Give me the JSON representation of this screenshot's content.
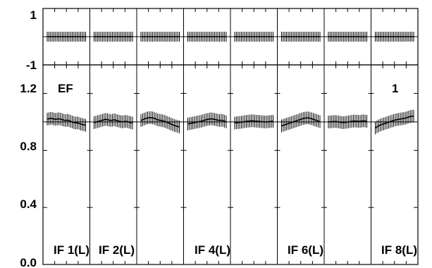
{
  "chart_data": [
    {
      "type": "line",
      "panel": "phase",
      "title": "",
      "xlabel": "",
      "ylabel": "",
      "ylim": [
        -1,
        1
      ],
      "ytick_labels": [
        "1",
        "-1"
      ],
      "grid": false,
      "segments": [
        {
          "values": [
            0,
            0,
            0,
            0,
            0,
            0,
            0,
            0,
            0,
            0,
            0,
            0,
            0,
            0,
            0,
            0,
            0,
            0,
            0,
            0,
            0,
            0,
            0,
            0
          ]
        },
        {
          "values": [
            0,
            0,
            0,
            0,
            0,
            0,
            0,
            0,
            0,
            0,
            0,
            0,
            0,
            0,
            0,
            0,
            0,
            0,
            0,
            0,
            0,
            0,
            0,
            0
          ]
        },
        {
          "values": [
            0,
            0,
            0,
            0,
            0,
            0,
            0,
            0,
            0,
            0,
            0,
            0,
            0,
            0,
            0,
            0,
            0,
            0,
            0,
            0,
            0,
            0,
            0,
            0
          ]
        },
        {
          "values": [
            0,
            0,
            0,
            0,
            0,
            0,
            0,
            0,
            0,
            0,
            0,
            0,
            0,
            0,
            0,
            0,
            0,
            0,
            0,
            0,
            0,
            0,
            0,
            0
          ]
        },
        {
          "values": [
            0,
            0,
            0,
            0,
            0,
            0,
            0,
            0,
            0,
            0,
            0,
            0,
            0,
            0,
            0,
            0,
            0,
            0,
            0,
            0,
            0,
            0,
            0,
            0
          ]
        },
        {
          "values": [
            0,
            0,
            0,
            0,
            0,
            0,
            0,
            0,
            0,
            0,
            0,
            0,
            0,
            0,
            0,
            0,
            0,
            0,
            0,
            0,
            0,
            0,
            0,
            0
          ]
        },
        {
          "values": [
            0,
            0,
            0,
            0,
            0,
            0,
            0,
            0,
            0,
            0,
            0,
            0,
            0,
            0,
            0,
            0,
            0,
            0,
            0,
            0,
            0,
            0,
            0,
            0
          ]
        },
        {
          "values": [
            0,
            0,
            0,
            0,
            0,
            0,
            0,
            0,
            0,
            0,
            0,
            0,
            0,
            0,
            0,
            0,
            0,
            0,
            0,
            0,
            0,
            0,
            0,
            0
          ]
        }
      ]
    },
    {
      "type": "line",
      "panel": "amplitude",
      "title": "",
      "xlabel": "",
      "ylabel": "",
      "ylim": [
        0.0,
        1.4
      ],
      "ytick_labels": [
        "1.2",
        "0.8",
        "0.4",
        "0.0"
      ],
      "grid": false,
      "annotations": [
        "EF",
        "1"
      ],
      "if_labels": [
        "IF 1(L)",
        "IF 2(L)",
        "IF 4(L)",
        "IF 6(L)",
        "IF 8(L)"
      ],
      "segments": [
        {
          "values": [
            1.02,
            1.022,
            1.025,
            1.024,
            1.02,
            1.018,
            1.02,
            1.022,
            1.02,
            1.016,
            1.012,
            1.01,
            1.012,
            1.01,
            1.004,
            1.0,
            0.995,
            0.992,
            0.994,
            0.99,
            0.985,
            0.982,
            0.98,
            0.976
          ]
        },
        {
          "values": [
            0.995,
            0.998,
            1.002,
            1.005,
            1.008,
            1.012,
            1.015,
            1.018,
            1.016,
            1.012,
            1.01,
            1.012,
            1.015,
            1.012,
            1.008,
            1.005,
            1.002,
            1.0,
            1.002,
            1.004,
            1.002,
            0.998,
            0.995,
            0.992
          ]
        },
        {
          "values": [
            1.01,
            1.015,
            1.02,
            1.025,
            1.028,
            1.03,
            1.03,
            1.028,
            1.025,
            1.02,
            1.015,
            1.012,
            1.01,
            1.008,
            1.005,
            1.0,
            0.995,
            0.99,
            0.985,
            0.98,
            0.975,
            0.972,
            0.968,
            0.965
          ]
        },
        {
          "values": [
            0.985,
            0.988,
            0.99,
            0.992,
            0.995,
            0.998,
            1.0,
            1.002,
            1.005,
            1.008,
            1.012,
            1.015,
            1.018,
            1.02,
            1.022,
            1.02,
            1.018,
            1.015,
            1.012,
            1.01,
            1.012,
            1.01,
            1.005,
            1.0
          ]
        },
        {
          "values": [
            0.992,
            0.994,
            0.995,
            0.996,
            0.998,
            1.0,
            1.002,
            1.004,
            1.005,
            1.006,
            1.008,
            1.008,
            1.006,
            1.005,
            1.004,
            1.003,
            1.002,
            1.001,
            1.0,
            1.0,
            1.001,
            1.002,
            1.004,
            1.005
          ]
        },
        {
          "values": [
            0.972,
            0.976,
            0.98,
            0.984,
            0.988,
            0.992,
            0.996,
            1.0,
            1.004,
            1.008,
            1.012,
            1.016,
            1.02,
            1.024,
            1.026,
            1.028,
            1.028,
            1.026,
            1.022,
            1.018,
            1.014,
            1.01,
            1.006,
            1.002
          ]
        },
        {
          "values": [
            1.0,
            1.0,
            1.002,
            1.002,
            1.003,
            1.002,
            1.0,
            0.998,
            0.996,
            0.995,
            0.996,
            0.998,
            1.0,
            1.002,
            1.004,
            1.006,
            1.006,
            1.005,
            1.004,
            1.004,
            1.006,
            1.008,
            1.006,
            1.004
          ]
        },
        {
          "values": [
            0.958,
            0.965,
            0.972,
            0.978,
            0.982,
            0.986,
            0.99,
            0.994,
            0.998,
            1.002,
            1.006,
            1.01,
            1.014,
            1.016,
            1.018,
            1.02,
            1.022,
            1.024,
            1.026,
            1.03,
            1.034,
            1.038,
            1.04,
            1.04
          ]
        }
      ]
    }
  ]
}
